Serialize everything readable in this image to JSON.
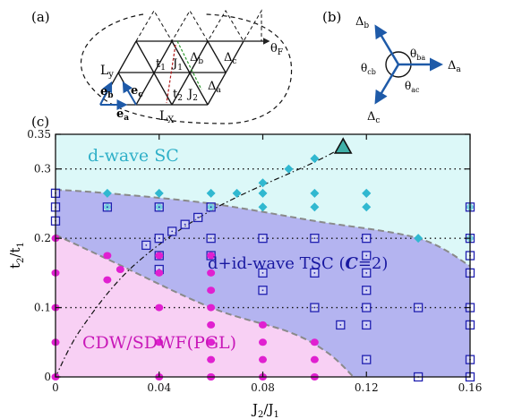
{
  "figure": {
    "panel_labels": [
      "(a)",
      "(b)",
      "(c)"
    ],
    "lattice_labels": {
      "ly": "L",
      "ly_sub": "y",
      "lx": "L",
      "lx_sub": "X",
      "eb": "e",
      "eb_sub": "b",
      "ec": "e",
      "ec_sub": "c",
      "ea": "e",
      "ea_sub": "a",
      "t1": "t",
      "t1_sub": "1",
      "j1": "J",
      "j1_sub": "1",
      "t2": "t",
      "t2_sub": "2",
      "j2": "J",
      "j2_sub": "2",
      "db": "Δ",
      "db_sub": "b",
      "dc": "Δ",
      "dc_sub": "c",
      "da": "Δ",
      "da_sub": "a",
      "theta": "θ",
      "theta_sub": "F"
    },
    "vector_labels": {
      "delta_b": "Δ",
      "delta_b_sub": "b",
      "delta_a": "Δ",
      "delta_a_sub": "a",
      "delta_c": "Δ",
      "delta_c_sub": "c",
      "theta_ba": "θ",
      "theta_ba_sub": "ba",
      "theta_cb": "θ",
      "theta_cb_sub": "cb",
      "theta_ac": "θ",
      "theta_ac_sub": "ac"
    }
  },
  "chart_data": {
    "type": "scatter",
    "xlabel": "J",
    "xlabel_sub": "2",
    "xlabel_tail": "/J",
    "xlabel_sub2": "1",
    "ylabel": "t",
    "ylabel_sub": "2",
    "ylabel_tail": "/t",
    "ylabel_sub2": "1",
    "xlim": [
      0,
      0.16
    ],
    "ylim": [
      0,
      0.35
    ],
    "xticks": [
      0,
      0.04,
      0.08,
      0.12,
      0.16
    ],
    "xtick_labels": [
      "0",
      "0.04",
      "0.08",
      "0.12",
      "0.16"
    ],
    "yticks": [
      0,
      0.1,
      0.2,
      0.3,
      0.35
    ],
    "ytick_labels": [
      "0",
      "0.1",
      "0.2",
      "0.3",
      "0.35"
    ],
    "grid_dotted_y": [
      0.1,
      0.2,
      0.3
    ],
    "colors": {
      "sc": "#dcf8f8",
      "tsc": "#b4b4f0",
      "cdw": "#f8d0f4",
      "boundary": "#8a8a8a",
      "sc_marker": "#30b8d0",
      "tsc_marker": "#2020b0",
      "cdw_marker": "#e020d0",
      "sc_text": "#30b0c8",
      "tsc_text": "#1818a0",
      "cdw_text": "#c818b8"
    },
    "regions": [
      {
        "name": "d-wave SC"
      },
      {
        "name": "d+id-wave TSC (",
        "italic": "C",
        "tail": "=2)"
      },
      {
        "name": "CDW/SDWF(PGL)"
      }
    ],
    "boundary_sc_tsc": [
      [
        0,
        0.27
      ],
      [
        0.02,
        0.265
      ],
      [
        0.06,
        0.25
      ],
      [
        0.1,
        0.225
      ],
      [
        0.14,
        0.2
      ],
      [
        0.16,
        0.16
      ]
    ],
    "boundary_cdw_tsc": [
      [
        0,
        0.205
      ],
      [
        0.02,
        0.17
      ],
      [
        0.06,
        0.1
      ],
      [
        0.09,
        0.065
      ],
      [
        0.105,
        0.035
      ],
      [
        0.115,
        0
      ]
    ],
    "dashdot_curve": [
      [
        0,
        0
      ],
      [
        0.01,
        0.07
      ],
      [
        0.03,
        0.16
      ],
      [
        0.06,
        0.24
      ],
      [
        0.1,
        0.31
      ],
      [
        0.11,
        0.33
      ]
    ],
    "triangle_marker": [
      0.111,
      0.332
    ],
    "series": [
      {
        "name": "d-wave SC",
        "marker": "diamond",
        "x": [
          0.02,
          0.04,
          0.06,
          0.08,
          0.1,
          0.12,
          0.16,
          0.02,
          0.04,
          0.06,
          0.07,
          0.08,
          0.1,
          0.12,
          0.16,
          0.08,
          0.09,
          0.1,
          0.12,
          0.14,
          0.16
        ],
        "y": [
          0.265,
          0.265,
          0.265,
          0.265,
          0.265,
          0.265,
          0.245,
          0.245,
          0.245,
          0.245,
          0.265,
          0.28,
          0.245,
          0.245,
          0.245,
          0.245,
          0.3,
          0.315,
          0.265,
          0.2,
          0.2
        ]
      },
      {
        "name": "d+id-wave TSC",
        "marker": "square",
        "x": [
          0,
          0,
          0,
          0.02,
          0.04,
          0.06,
          0.04,
          0.045,
          0.05,
          0.055,
          0.04,
          0.04,
          0.06,
          0.06,
          0.08,
          0.08,
          0.1,
          0.1,
          0.12,
          0.12,
          0.12,
          0.12,
          0.12,
          0.12,
          0.14,
          0.16,
          0.16,
          0.16,
          0.16,
          0.16,
          0.16,
          0.16,
          0.1,
          0.11,
          0.12,
          0.14,
          0.16,
          0.08,
          0.035
        ],
        "y": [
          0.265,
          0.245,
          0.225,
          0.245,
          0.245,
          0.245,
          0.2,
          0.21,
          0.22,
          0.23,
          0.175,
          0.155,
          0.2,
          0.175,
          0.2,
          0.15,
          0.2,
          0.15,
          0.2,
          0.175,
          0.15,
          0.125,
          0.1,
          0.075,
          0.1,
          0.245,
          0.2,
          0.175,
          0.15,
          0.1,
          0.075,
          0.025,
          0.1,
          0.075,
          0.025,
          0,
          0,
          0.125,
          0.19
        ]
      },
      {
        "name": "CDW/SDWF(PGL)",
        "marker": "circle",
        "x": [
          0,
          0,
          0,
          0,
          0,
          0.02,
          0.02,
          0.025,
          0.04,
          0.04,
          0.04,
          0.04,
          0.04,
          0.06,
          0.06,
          0.06,
          0.06,
          0.06,
          0.06,
          0.08,
          0.08,
          0.08,
          0.08,
          0.1,
          0.1,
          0.1,
          0.06,
          0.06,
          0.06
        ],
        "y": [
          0.2,
          0.15,
          0.1,
          0.05,
          0,
          0.175,
          0.14,
          0.155,
          0.175,
          0.15,
          0.1,
          0.05,
          0,
          0.175,
          0.15,
          0.1,
          0.075,
          0.05,
          0.025,
          0.075,
          0.05,
          0.025,
          0,
          0.05,
          0.025,
          0,
          0.125,
          0,
          0.0
        ]
      }
    ]
  }
}
